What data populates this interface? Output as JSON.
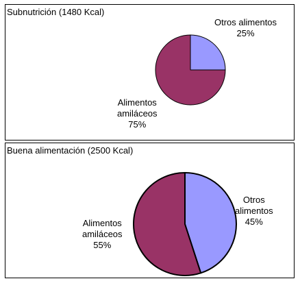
{
  "chart_data": [
    {
      "type": "pie",
      "title": "Subnutrición (1480 Kcal)",
      "slices": [
        {
          "label_lines": [
            "Otros alimentos",
            "25%"
          ],
          "value": 25,
          "color": "#9999ff"
        },
        {
          "label_lines": [
            "Alimentos",
            "amiláceos",
            "75%"
          ],
          "value": 75,
          "color": "#993366"
        }
      ]
    },
    {
      "type": "pie",
      "title": "Buena alimentación (2500 Kcal)",
      "slices": [
        {
          "label_lines": [
            "Otros",
            "alimentos",
            "45%"
          ],
          "value": 45,
          "color": "#9999ff"
        },
        {
          "label_lines": [
            "Alimentos",
            "amiláceos",
            "55%"
          ],
          "value": 55,
          "color": "#993366"
        }
      ]
    }
  ]
}
